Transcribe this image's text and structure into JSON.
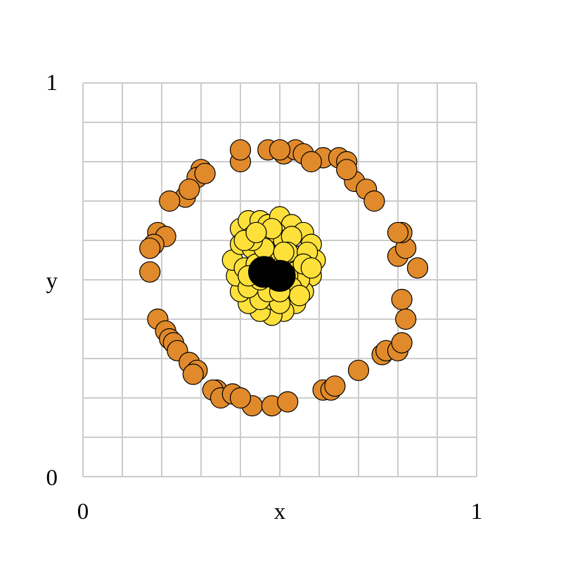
{
  "chart_data": {
    "type": "scatter",
    "title": "",
    "xlabel": "x",
    "ylabel": "y",
    "xlim": [
      0,
      1
    ],
    "ylim": [
      0,
      1
    ],
    "x_ticks": [
      "0",
      "1"
    ],
    "y_ticks": [
      "0",
      "1"
    ],
    "grid": true,
    "grid_divisions": 10,
    "colors": {
      "ring": "#e08a2b",
      "core": "#fde13a",
      "center": "#000000",
      "grid": "#cccccc"
    },
    "series": [
      {
        "color": "#e08a2b",
        "x": [
          0.4,
          0.4,
          0.47,
          0.51,
          0.54,
          0.56,
          0.61,
          0.65,
          0.67,
          0.69,
          0.67,
          0.72,
          0.74,
          0.58,
          0.5,
          0.3,
          0.29,
          0.31,
          0.26,
          0.27,
          0.22,
          0.19,
          0.21,
          0.18,
          0.17,
          0.17,
          0.19,
          0.21,
          0.22,
          0.23,
          0.24,
          0.27,
          0.29,
          0.28,
          0.34,
          0.33,
          0.35,
          0.38,
          0.43,
          0.4,
          0.48,
          0.52,
          0.61,
          0.63,
          0.64,
          0.7,
          0.76,
          0.77,
          0.8,
          0.81,
          0.81,
          0.8,
          0.85,
          0.82,
          0.81,
          0.8,
          0.82
        ],
        "y": [
          0.8,
          0.83,
          0.83,
          0.82,
          0.83,
          0.82,
          0.81,
          0.81,
          0.8,
          0.75,
          0.78,
          0.73,
          0.7,
          0.8,
          0.83,
          0.78,
          0.76,
          0.77,
          0.71,
          0.73,
          0.7,
          0.62,
          0.61,
          0.59,
          0.58,
          0.52,
          0.4,
          0.37,
          0.35,
          0.34,
          0.32,
          0.29,
          0.27,
          0.26,
          0.22,
          0.22,
          0.2,
          0.21,
          0.18,
          0.2,
          0.18,
          0.19,
          0.22,
          0.22,
          0.23,
          0.27,
          0.31,
          0.32,
          0.32,
          0.34,
          0.45,
          0.56,
          0.53,
          0.58,
          0.62,
          0.62,
          0.4
        ]
      },
      {
        "color": "#fde13a",
        "x": [
          0.4,
          0.42,
          0.45,
          0.47,
          0.5,
          0.53,
          0.56,
          0.58,
          0.59,
          0.58,
          0.56,
          0.54,
          0.51,
          0.48,
          0.45,
          0.42,
          0.4,
          0.39,
          0.38,
          0.4,
          0.43,
          0.45,
          0.47,
          0.49,
          0.51,
          0.53,
          0.55,
          0.54,
          0.52,
          0.49,
          0.46,
          0.43,
          0.41,
          0.44,
          0.47,
          0.5,
          0.52,
          0.48,
          0.45,
          0.42,
          0.55,
          0.57,
          0.5,
          0.44,
          0.46,
          0.52,
          0.49,
          0.43,
          0.41,
          0.56,
          0.53,
          0.47,
          0.51,
          0.45,
          0.48,
          0.55,
          0.42,
          0.58,
          0.44,
          0.5
        ],
        "y": [
          0.63,
          0.65,
          0.65,
          0.64,
          0.66,
          0.64,
          0.62,
          0.59,
          0.55,
          0.51,
          0.47,
          0.44,
          0.42,
          0.41,
          0.42,
          0.44,
          0.47,
          0.51,
          0.55,
          0.59,
          0.61,
          0.58,
          0.61,
          0.62,
          0.6,
          0.61,
          0.56,
          0.52,
          0.57,
          0.56,
          0.54,
          0.58,
          0.53,
          0.5,
          0.49,
          0.53,
          0.47,
          0.45,
          0.45,
          0.48,
          0.5,
          0.57,
          0.44,
          0.54,
          0.58,
          0.51,
          0.52,
          0.6,
          0.6,
          0.54,
          0.48,
          0.47,
          0.57,
          0.5,
          0.63,
          0.46,
          0.51,
          0.53,
          0.62,
          0.47
        ]
      },
      {
        "color": "#000000",
        "x": [
          0.46,
          0.5
        ],
        "y": [
          0.52,
          0.51
        ]
      }
    ]
  }
}
